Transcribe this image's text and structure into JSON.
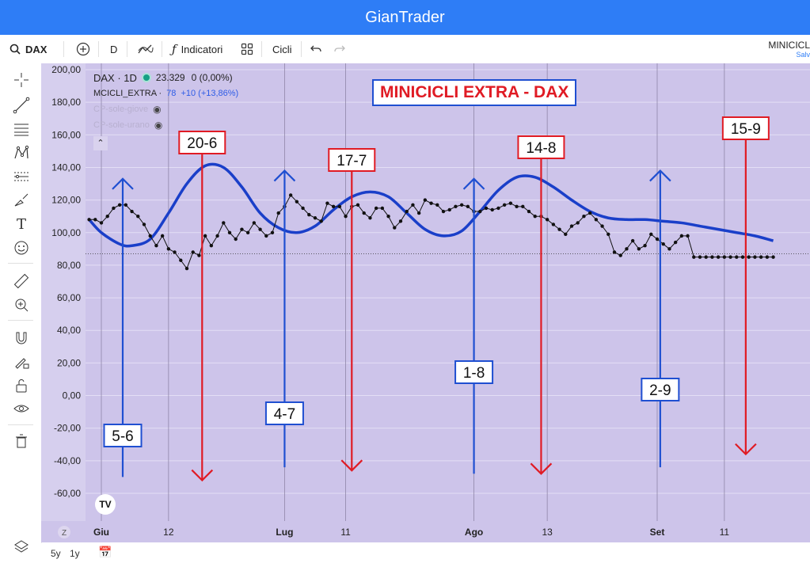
{
  "app": {
    "title": "GianTrader"
  },
  "toolbar": {
    "symbol": "DAX",
    "interval": "D",
    "indicators_label": "Indicatori",
    "cycles_label": "Cicli",
    "right_title": "MINICICL",
    "right_sub": "Salv"
  },
  "legend": {
    "symbol_line": "DAX · 1D",
    "price": "23.329",
    "change": "0 (0,00%)",
    "indicator_name": "MCICLI_EXTRA ·",
    "indicator_value": "78",
    "indicator_change": "+10 (+13,86%)",
    "hidden_1": "CP-sole-giove",
    "hidden_2": "CP-sole-urano"
  },
  "annotations": {
    "title": "MINICICLI EXTRA - DAX",
    "labels": [
      {
        "text": "5-6",
        "color": "#1f4fd1",
        "dir": "up"
      },
      {
        "text": "20-6",
        "color": "#e01b24",
        "dir": "down"
      },
      {
        "text": "4-7",
        "color": "#1f4fd1",
        "dir": "up"
      },
      {
        "text": "17-7",
        "color": "#e01b24",
        "dir": "down"
      },
      {
        "text": "1-8",
        "color": "#1f4fd1",
        "dir": "up"
      },
      {
        "text": "14-8",
        "color": "#e01b24",
        "dir": "down"
      },
      {
        "text": "2-9",
        "color": "#1f4fd1",
        "dir": "up"
      },
      {
        "text": "15-9",
        "color": "#e01b24",
        "dir": "down"
      }
    ]
  },
  "chart_data": {
    "type": "line",
    "ylim": [
      -70,
      200
    ],
    "yticks": [
      "200,00",
      "180,00",
      "160,00",
      "140,00",
      "120,00",
      "100,00",
      "80,00",
      "60,00",
      "40,00",
      "20,00",
      "0,00",
      "-20,00",
      "-40,00",
      "-60,00"
    ],
    "ytick_values": [
      200,
      180,
      160,
      140,
      120,
      100,
      80,
      60,
      40,
      20,
      0,
      -20,
      -40,
      -60
    ],
    "xticks": [
      "Giu",
      "12",
      "Lug",
      "11",
      "Ago",
      "13",
      "Set",
      "11"
    ],
    "xtick_days": [
      0,
      11,
      30,
      40,
      61,
      73,
      91,
      102
    ],
    "grid": true,
    "series": [
      {
        "color": "#1a3fc9",
        "days": [
          -2,
          0,
          3,
          5,
          8,
          11,
          14,
          17,
          20,
          23,
          26,
          29,
          32,
          35,
          38,
          41,
          44,
          47,
          50,
          53,
          56,
          59,
          62,
          65,
          68,
          71,
          74,
          77,
          80,
          83,
          86,
          89,
          92,
          95,
          98,
          101,
          104,
          107,
          110
        ],
        "values": [
          108,
          100,
          93,
          92,
          96,
          112,
          130,
          141,
          140,
          128,
          112,
          103,
          100,
          104,
          114,
          122,
          125,
          122,
          112,
          102,
          98,
          101,
          113,
          126,
          134,
          134,
          128,
          120,
          113,
          109,
          108,
          108,
          107,
          106,
          104,
          102,
          100,
          98,
          95
        ]
      },
      {
        "color": "#111111",
        "days": [
          -2,
          -1,
          0,
          1,
          2,
          3,
          4,
          5,
          6,
          7,
          8,
          9,
          10,
          11,
          12,
          13,
          14,
          15,
          16,
          17,
          18,
          19,
          20,
          21,
          22,
          23,
          24,
          25,
          26,
          27,
          28,
          29,
          30,
          31,
          32,
          33,
          34,
          35,
          36,
          37,
          38,
          39,
          40,
          41,
          42,
          43,
          44,
          45,
          46,
          47,
          48,
          49,
          50,
          51,
          52,
          53,
          54,
          55,
          56,
          57,
          58,
          59,
          60,
          61,
          62,
          63,
          64,
          65,
          66,
          67,
          68,
          69,
          70,
          71,
          72,
          73,
          74,
          75,
          76,
          77,
          78,
          79,
          80,
          81,
          82,
          83,
          84,
          85,
          86,
          87,
          88,
          89,
          90,
          91,
          92,
          93,
          94,
          95,
          96,
          97,
          98,
          99,
          100,
          101,
          102,
          103,
          104,
          105,
          106,
          107,
          108,
          109,
          110
        ],
        "values": [
          108,
          108,
          106,
          110,
          115,
          117,
          117,
          113,
          110,
          105,
          98,
          92,
          98,
          90,
          88,
          83,
          78,
          88,
          86,
          98,
          92,
          98,
          106,
          100,
          96,
          102,
          100,
          106,
          102,
          98,
          100,
          112,
          116,
          123,
          119,
          115,
          111,
          109,
          107,
          118,
          116,
          116,
          110,
          116,
          117,
          112,
          109,
          115,
          115,
          110,
          103,
          107,
          113,
          117,
          112,
          120,
          118,
          117,
          113,
          114,
          116,
          117,
          116,
          113,
          113,
          115,
          114,
          115,
          117,
          118,
          116,
          116,
          113,
          110,
          110,
          108,
          105,
          102,
          99,
          104,
          106,
          110,
          112,
          108,
          104,
          99,
          88,
          86,
          90,
          95,
          90,
          92,
          99,
          96,
          93,
          90,
          94,
          98,
          98,
          85,
          85,
          85,
          85,
          85,
          85,
          85,
          85,
          85,
          85,
          85,
          85,
          85,
          85
        ]
      }
    ],
    "reference_line": 87
  },
  "bottom": {
    "range_5y": "5y",
    "range_1y": "1y",
    "z_label": "Z"
  }
}
